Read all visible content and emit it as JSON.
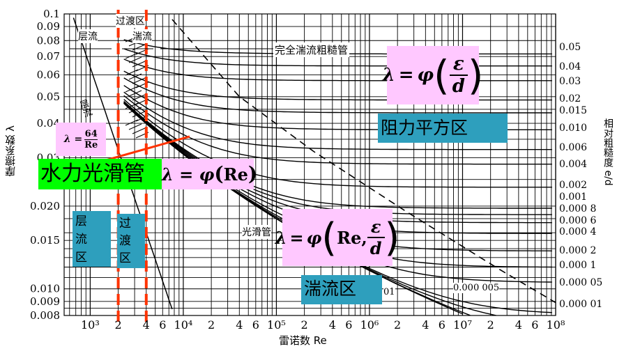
{
  "y_ticks": [
    "0.1",
    "0.09",
    "0.08",
    "0.07",
    "0.06",
    "0.05",
    "0.04",
    "0.03",
    "0.020",
    "0.015",
    "0.010",
    "0.009",
    "0.008"
  ],
  "x_ticks": [
    "10³",
    "2",
    "4",
    "6",
    "10⁴",
    "2",
    "4",
    "6",
    "10⁵",
    "2",
    "4",
    "6",
    "10⁶",
    "2",
    "4",
    "6",
    "10⁷",
    "2",
    "4",
    "6",
    "10⁸"
  ],
  "right_ticks": [
    "0.05",
    "0.04",
    "0.03",
    "0.02",
    "0.015",
    "0.010",
    "0.006",
    "0.004",
    "0.002",
    "0.001",
    "0.000 8",
    "0.000 6",
    "0.000 4",
    "0.000 2",
    "0.000 1",
    "0.000 05",
    "0.000 01"
  ],
  "labels": {
    "y_axis": "摩擦系数 λ",
    "x_axis": "雷诺数 Re",
    "right_axis": "相对粗糙度 e/d",
    "transition_top": "过渡区",
    "laminar_top": "层流",
    "turbulent_top": "湍流",
    "full_rough": "完全湍流粗糙管",
    "laminar_curve": "层流",
    "smooth_pipe": "光滑管",
    "low_rough_1": "0.000 005",
    "low_rough_2": "01"
  },
  "formulas": {
    "laminar": "λ = 64/Re",
    "smooth": "λ = φ(Re)",
    "rough_square": "λ = φ(ε/d)",
    "transition": "λ = φ(Re, ε/d)"
  },
  "boxes": {
    "smooth_pipe_big": "水力光滑管",
    "resistance_square": "阻力平方区",
    "laminar_zone": "层流区",
    "transition_zone": "过渡区",
    "turbulent_zone": "湍流区"
  }
}
